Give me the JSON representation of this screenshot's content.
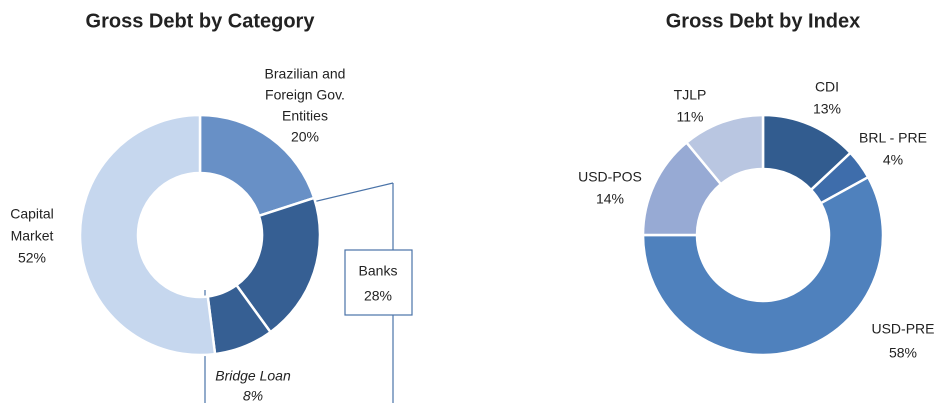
{
  "chart_data": [
    {
      "type": "donut",
      "title": "Gross Debt by Category",
      "categories": [
        [
          "Brazilian and",
          "Foreign Gov.",
          "Entities"
        ],
        [
          "Banks"
        ],
        [
          "Capital",
          "Market"
        ]
      ],
      "values": [
        20,
        28,
        52
      ],
      "value_labels": [
        "20%",
        "28%",
        "52%"
      ],
      "colors": [
        "#6890c6",
        "#365f93",
        "#c6d7ee"
      ],
      "sub_slice": {
        "parent": 1,
        "label": "Bridge Loan",
        "value": 8,
        "value_label": "8%",
        "color": "#365f93"
      }
    },
    {
      "type": "donut",
      "title": "Gross Debt by Index",
      "categories": [
        [
          "CDI"
        ],
        [
          "BRL - PRE"
        ],
        [
          "USD-PRE"
        ],
        [
          "USD-POS"
        ],
        [
          "TJLP"
        ]
      ],
      "values": [
        13,
        4,
        58,
        14,
        11
      ],
      "value_labels": [
        "13%",
        "4%",
        "58%",
        "14%",
        "11%"
      ],
      "colors": [
        "#325c8f",
        "#3e6dab",
        "#4f81bd",
        "#97aad4",
        "#b9c6e1"
      ]
    }
  ]
}
